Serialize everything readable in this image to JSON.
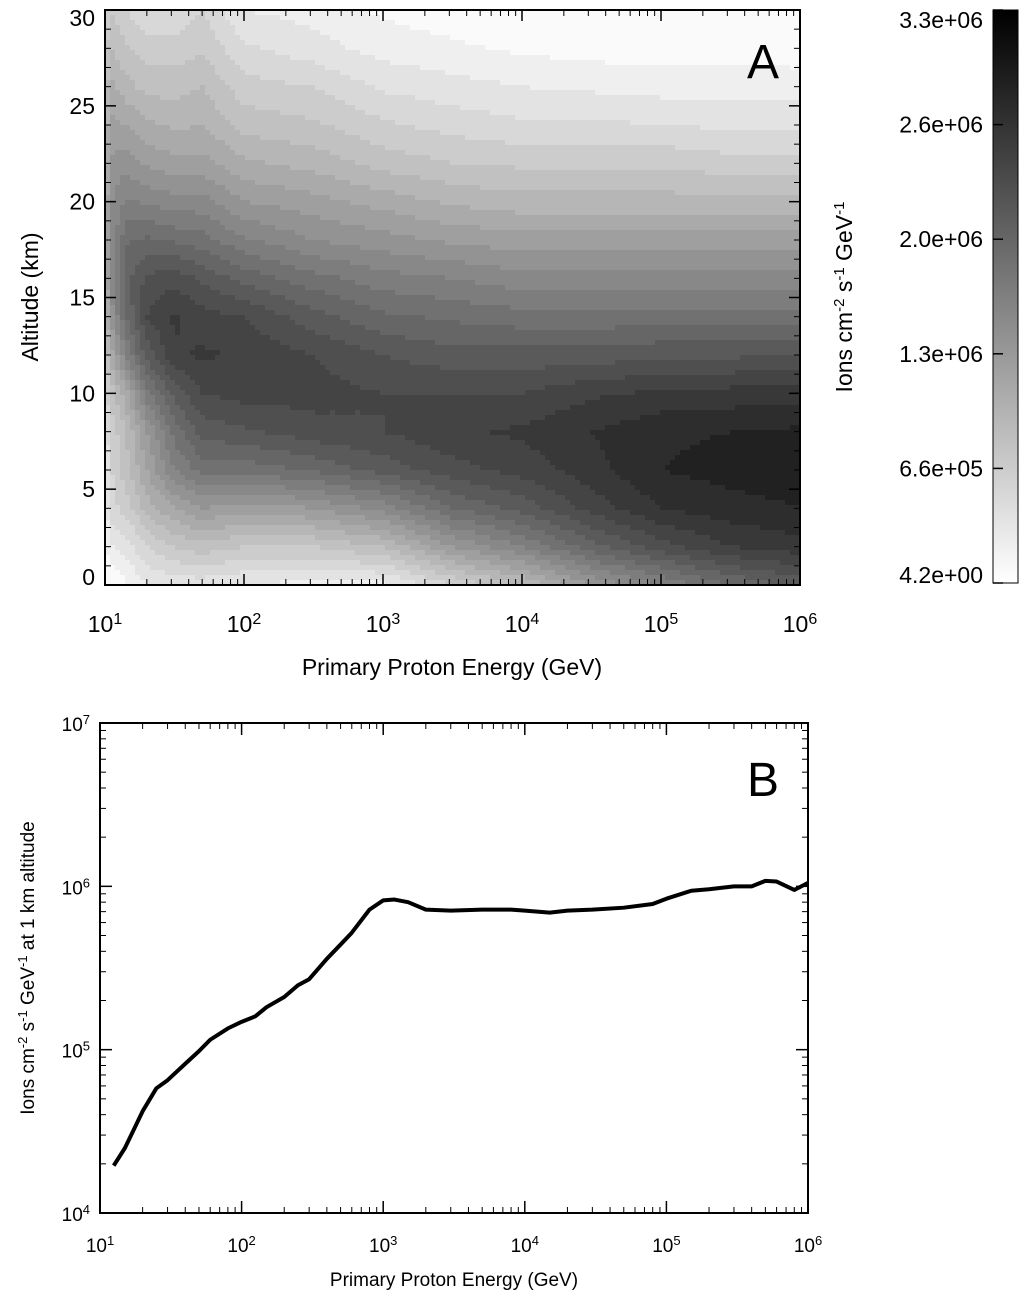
{
  "chart_data": [
    {
      "type": "heatmap",
      "panel_label": "A",
      "xlabel": "Primary Proton Energy (GeV)",
      "ylabel": "Altitude (km)",
      "x_scale": "log",
      "xlim": [
        10,
        1000000
      ],
      "ylim": [
        0,
        30
      ],
      "x_ticks": [
        10,
        100,
        1000,
        10000,
        100000,
        1000000
      ],
      "y_ticks": [
        0,
        5,
        10,
        15,
        20,
        25,
        30
      ],
      "colorbar": {
        "label": "Ions cm^-2 s^-1 GeV^-1",
        "tick_labels": [
          "3.3e+06",
          "2.6e+06",
          "2.0e+06",
          "1.3e+06",
          "6.6e+05",
          "4.2e+00"
        ],
        "min": 4.2,
        "max": 3300000,
        "colormap": "white-to-black",
        "levels": 20
      },
      "energy_grid_log10": [
        1.0,
        1.05,
        1.15,
        1.3,
        1.5,
        1.7,
        2.0,
        2.5,
        3.0,
        3.5,
        4.0,
        4.5,
        5.0,
        5.5,
        6.0
      ],
      "altitude_grid_km": [
        0,
        2,
        4,
        6,
        8,
        10,
        12,
        14,
        16,
        18,
        20,
        22,
        24,
        26,
        28,
        30
      ],
      "values": [
        [
          0.0,
          0.0,
          0.04,
          0.1,
          0.12,
          0.12,
          0.1,
          0.08,
          0.08,
          0.2,
          0.3,
          0.45,
          0.55,
          0.65,
          0.72
        ],
        [
          0.05,
          0.1,
          0.12,
          0.2,
          0.25,
          0.28,
          0.25,
          0.25,
          0.3,
          0.45,
          0.55,
          0.68,
          0.78,
          0.85,
          0.88
        ],
        [
          0.08,
          0.18,
          0.22,
          0.32,
          0.4,
          0.45,
          0.42,
          0.45,
          0.52,
          0.65,
          0.72,
          0.82,
          0.9,
          0.93,
          0.95
        ],
        [
          0.1,
          0.2,
          0.28,
          0.4,
          0.55,
          0.62,
          0.62,
          0.66,
          0.72,
          0.78,
          0.82,
          0.88,
          0.95,
          0.97,
          0.98
        ],
        [
          0.12,
          0.22,
          0.3,
          0.45,
          0.62,
          0.72,
          0.74,
          0.78,
          0.8,
          0.84,
          0.86,
          0.9,
          0.94,
          0.95,
          0.96
        ],
        [
          0.18,
          0.28,
          0.38,
          0.58,
          0.72,
          0.8,
          0.82,
          0.82,
          0.8,
          0.8,
          0.8,
          0.84,
          0.86,
          0.87,
          0.88
        ],
        [
          0.25,
          0.38,
          0.55,
          0.72,
          0.84,
          0.86,
          0.84,
          0.8,
          0.75,
          0.72,
          0.72,
          0.72,
          0.74,
          0.74,
          0.75
        ],
        [
          0.32,
          0.48,
          0.65,
          0.8,
          0.86,
          0.82,
          0.8,
          0.72,
          0.66,
          0.64,
          0.62,
          0.62,
          0.62,
          0.62,
          0.62
        ],
        [
          0.35,
          0.52,
          0.68,
          0.76,
          0.78,
          0.74,
          0.68,
          0.62,
          0.57,
          0.55,
          0.52,
          0.52,
          0.52,
          0.52,
          0.52
        ],
        [
          0.36,
          0.52,
          0.64,
          0.66,
          0.64,
          0.62,
          0.56,
          0.5,
          0.47,
          0.44,
          0.42,
          0.42,
          0.42,
          0.42,
          0.42
        ],
        [
          0.35,
          0.5,
          0.56,
          0.54,
          0.52,
          0.52,
          0.45,
          0.42,
          0.38,
          0.34,
          0.32,
          0.32,
          0.32,
          0.32,
          0.32
        ],
        [
          0.33,
          0.46,
          0.48,
          0.44,
          0.42,
          0.42,
          0.36,
          0.33,
          0.28,
          0.25,
          0.24,
          0.24,
          0.24,
          0.22,
          0.22
        ],
        [
          0.31,
          0.42,
          0.4,
          0.36,
          0.34,
          0.35,
          0.28,
          0.26,
          0.21,
          0.18,
          0.16,
          0.16,
          0.15,
          0.14,
          0.14
        ],
        [
          0.28,
          0.36,
          0.32,
          0.28,
          0.28,
          0.3,
          0.22,
          0.2,
          0.14,
          0.12,
          0.1,
          0.09,
          0.08,
          0.08,
          0.08
        ],
        [
          0.24,
          0.3,
          0.26,
          0.22,
          0.22,
          0.24,
          0.16,
          0.12,
          0.08,
          0.06,
          0.04,
          0.03,
          0.02,
          0.02,
          0.02
        ],
        [
          0.2,
          0.24,
          0.2,
          0.16,
          0.16,
          0.2,
          0.1,
          0.08,
          0.04,
          0.02,
          0.01,
          0.0,
          0.0,
          0.0,
          0.0
        ]
      ]
    },
    {
      "type": "line",
      "panel_label": "B",
      "xlabel": "Primary Proton Energy (GeV)",
      "ylabel": "Ions cm^-2 s^-1 GeV^-1 at 1 km altitude",
      "x_scale": "log",
      "y_scale": "log",
      "xlim": [
        10,
        1000000
      ],
      "ylim": [
        10000,
        10000000
      ],
      "x_ticks": [
        10,
        100,
        1000,
        10000,
        100000,
        1000000
      ],
      "y_ticks": [
        10000,
        100000,
        1000000,
        10000000
      ],
      "x": [
        12.5,
        15,
        20,
        25,
        30,
        40,
        50,
        60,
        80,
        100,
        125,
        150,
        200,
        250,
        300,
        400,
        500,
        600,
        800,
        1000,
        1200,
        1500,
        2000,
        3000,
        5000,
        8000,
        10000,
        15000,
        20000,
        30000,
        50000,
        80000,
        100000,
        150000,
        200000,
        300000,
        400000,
        500000,
        600000,
        800000,
        1000000
      ],
      "y": [
        19500,
        25000,
        42000,
        58000,
        65000,
        82000,
        98000,
        115000,
        135000,
        148000,
        160000,
        182000,
        210000,
        248000,
        270000,
        360000,
        440000,
        520000,
        720000,
        820000,
        830000,
        800000,
        720000,
        710000,
        720000,
        720000,
        710000,
        690000,
        710000,
        720000,
        740000,
        780000,
        840000,
        940000,
        960000,
        1000000,
        1000000,
        1080000,
        1070000,
        950000,
        1050000
      ]
    }
  ]
}
